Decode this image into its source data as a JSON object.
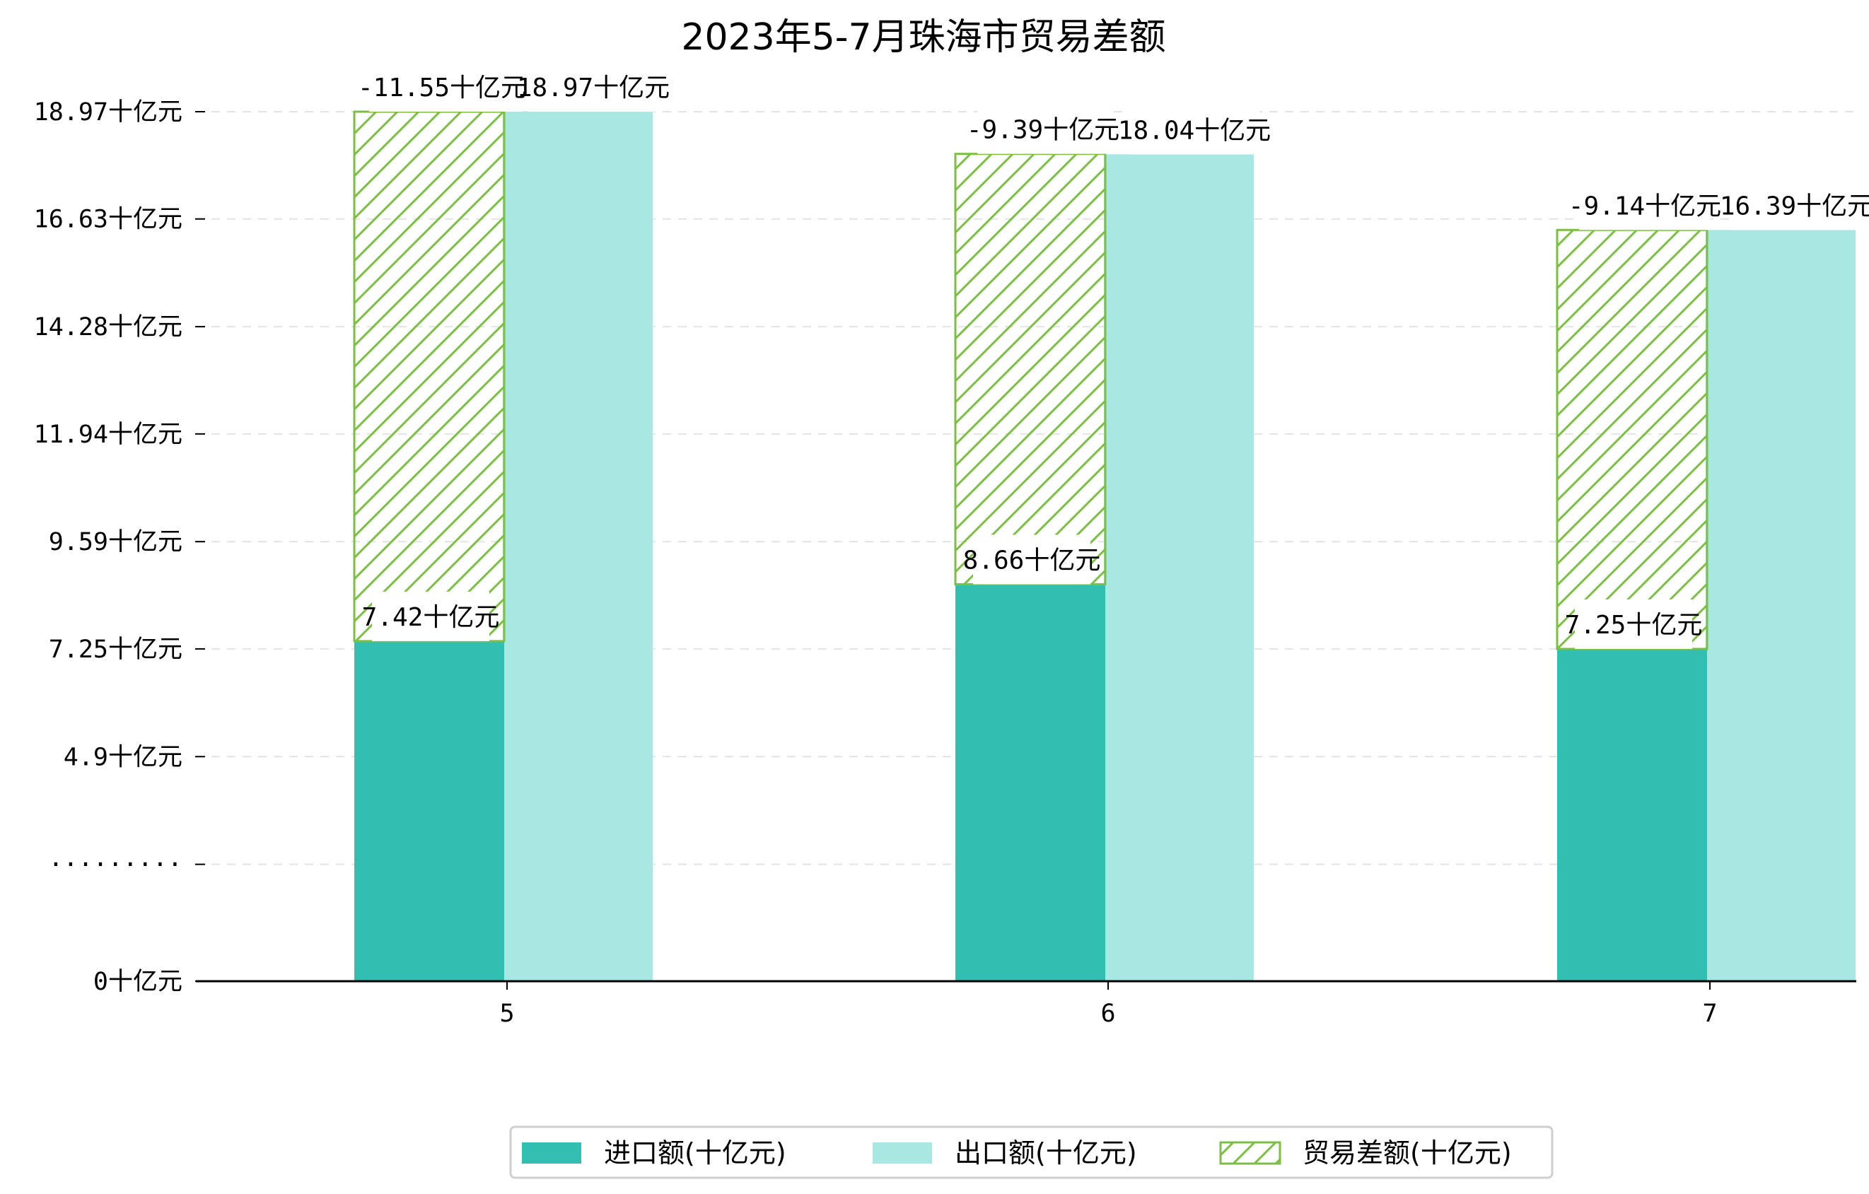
{
  "chart_data": {
    "type": "bar",
    "title": "2023年5-7月珠海市贸易差额",
    "categories": [
      "5",
      "6",
      "7"
    ],
    "ytick_labels": [
      "0十亿元",
      "·········",
      "4.9十亿元",
      "7.25十亿元",
      "9.59十亿元",
      "11.94十亿元",
      "14.28十亿元",
      "16.63十亿元",
      "18.97十亿元"
    ],
    "ytick_values": [
      0,
      2.55,
      4.9,
      7.25,
      9.59,
      11.94,
      14.28,
      16.63,
      18.97
    ],
    "ylim": [
      0,
      19.8
    ],
    "grid": true,
    "legend_position": "bottom",
    "series": [
      {
        "name": "进口额(十亿元)",
        "values": [
          7.42,
          8.66,
          7.25
        ],
        "labels": [
          "7.42十亿元",
          "8.66十亿元",
          "7.25十亿元"
        ],
        "color": "#32bfb2"
      },
      {
        "name": "出口额(十亿元)",
        "values": [
          18.97,
          18.04,
          16.39
        ],
        "labels": [
          "18.97十亿元",
          "18.04十亿元",
          "16.39十亿元"
        ],
        "color": "#a8e7e2"
      },
      {
        "name": "贸易差额(十亿元)",
        "values": [
          -11.55,
          -9.39,
          -9.14
        ],
        "labels": [
          "-11.55十亿元",
          "-9.39十亿元",
          "-9.14十亿元"
        ],
        "color": "#7bc043",
        "hatched": true
      }
    ]
  }
}
